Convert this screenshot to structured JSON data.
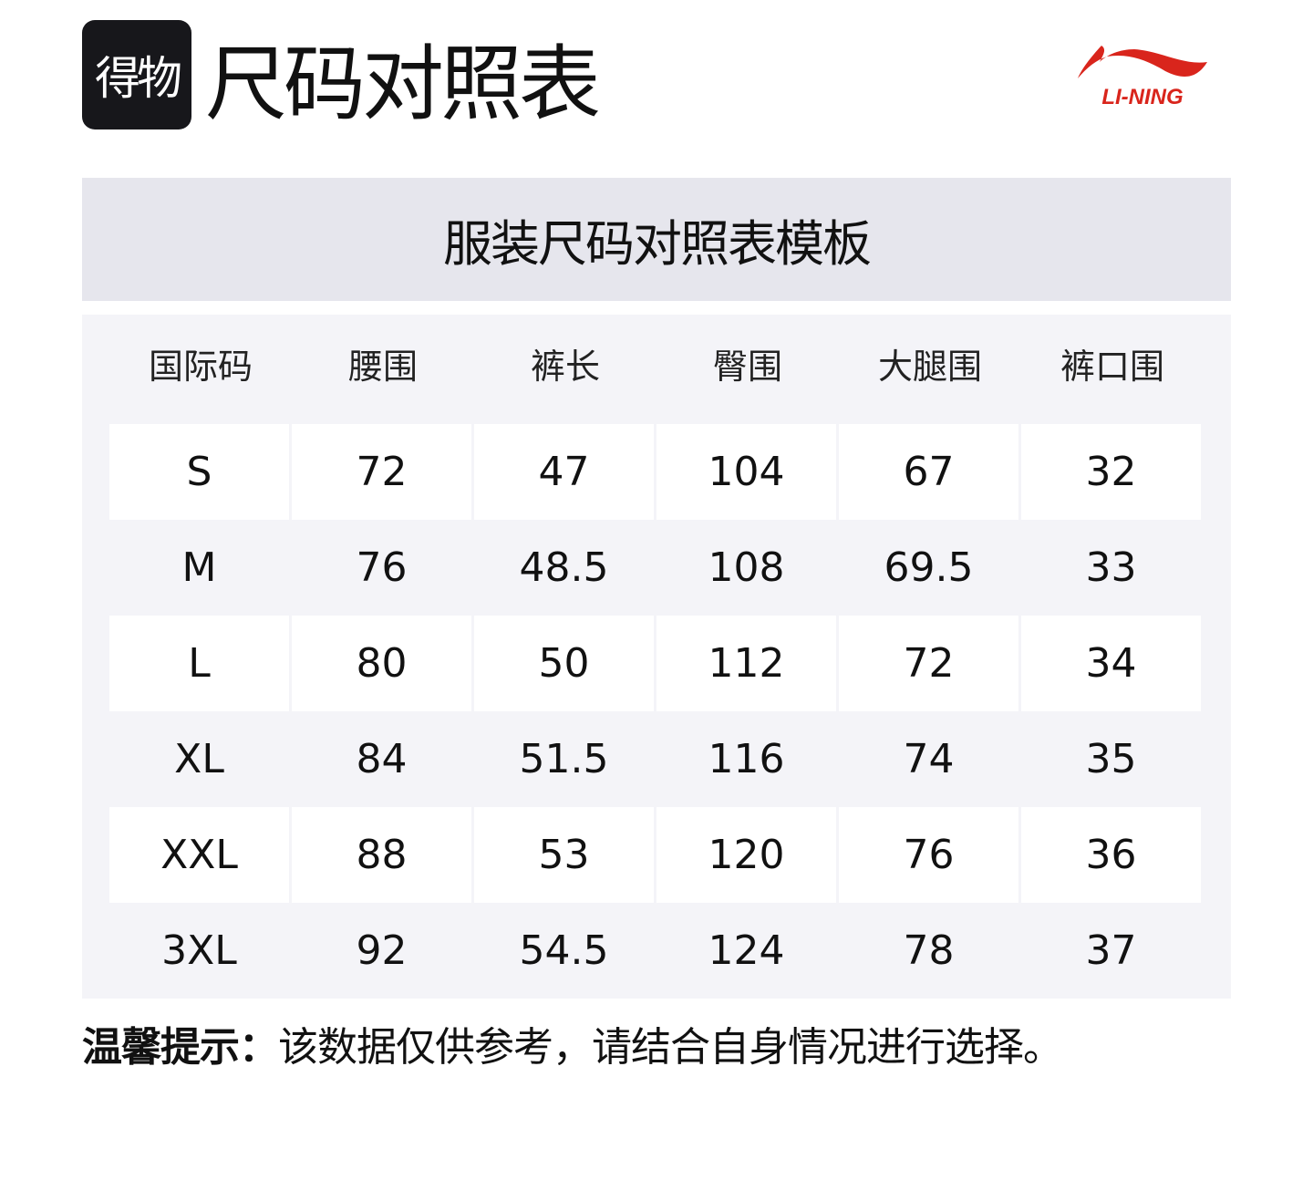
{
  "header": {
    "brand_badge": "得物",
    "title": "尺码对照表",
    "logo_text": "LI-NING",
    "logo_color": "#d9251c"
  },
  "table": {
    "title": "服装尺码对照表模板",
    "columns": [
      "国际码",
      "腰围",
      "裤长",
      "臀围",
      "大腿围",
      "裤口围"
    ],
    "rows": [
      [
        "S",
        "72",
        "47",
        "104",
        "67",
        "32"
      ],
      [
        "M",
        "76",
        "48.5",
        "108",
        "69.5",
        "33"
      ],
      [
        "L",
        "80",
        "50",
        "112",
        "72",
        "34"
      ],
      [
        "XL",
        "84",
        "51.5",
        "116",
        "74",
        "35"
      ],
      [
        "XXL",
        "88",
        "53",
        "120",
        "76",
        "36"
      ],
      [
        "3XL",
        "92",
        "54.5",
        "124",
        "78",
        "37"
      ]
    ]
  },
  "note": {
    "label": "温馨提示：",
    "text": "该数据仅供参考，请结合自身情况进行选择。"
  }
}
